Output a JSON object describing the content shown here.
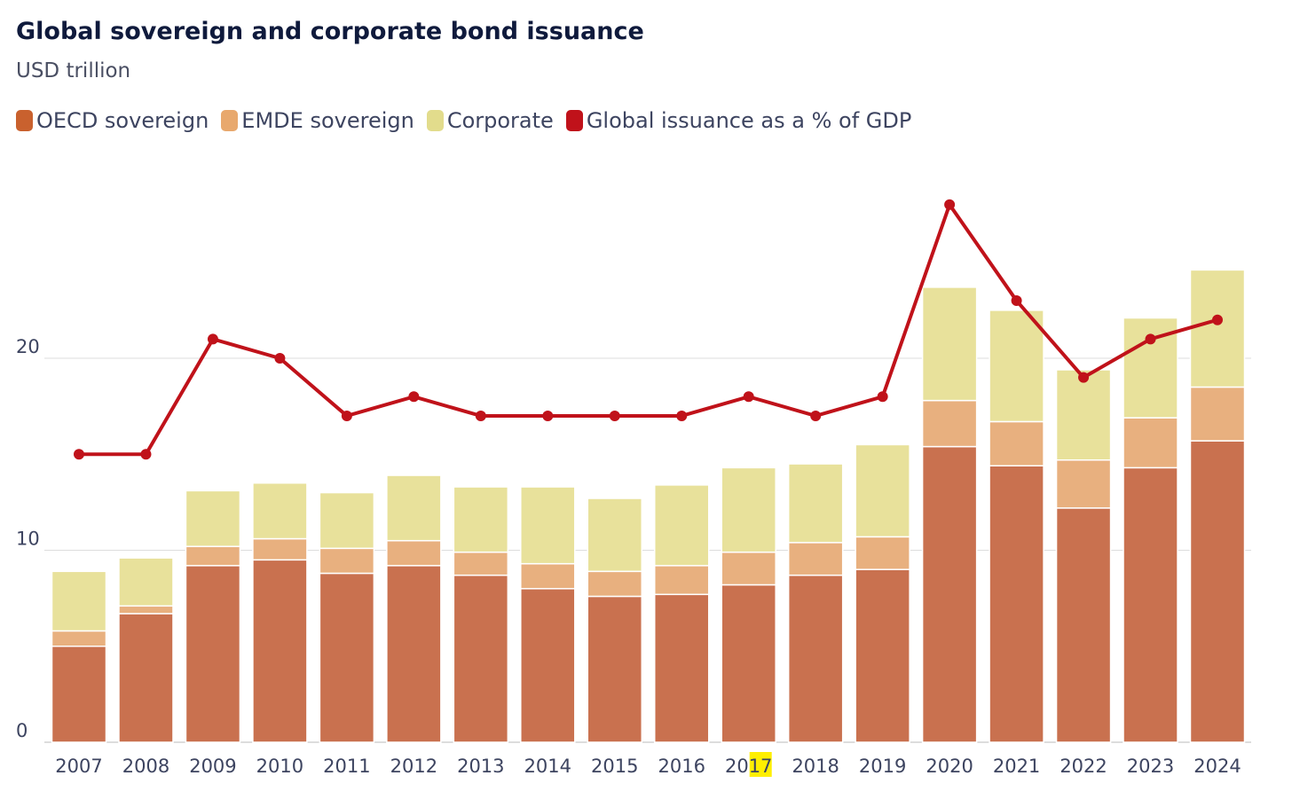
{
  "chart_data": {
    "type": "bar",
    "title": "Global sovereign and corporate bond issuance",
    "subtitle": "USD trillion",
    "xlabel": "",
    "ylabel": "USD trillion",
    "ylim": [
      0,
      30
    ],
    "yticks": [
      0,
      10,
      20
    ],
    "grid": true,
    "legend_placement": "top-left",
    "stacked": true,
    "categories": [
      "2007",
      "2008",
      "2009",
      "2010",
      "2011",
      "2012",
      "2013",
      "2014",
      "2015",
      "2016",
      "2017",
      "2018",
      "2019",
      "2020",
      "2021",
      "2022",
      "2023",
      "2024"
    ],
    "highlighted_label": {
      "category": "2017",
      "prefix": "20",
      "highlighted": "17"
    },
    "series": [
      {
        "name": "OECD sovereign",
        "type": "bar",
        "color": "#c9714f",
        "values": [
          5.0,
          6.7,
          9.2,
          9.5,
          8.8,
          9.2,
          8.7,
          8.0,
          7.6,
          7.7,
          8.2,
          8.7,
          9.0,
          15.4,
          14.4,
          12.2,
          14.3,
          15.7
        ]
      },
      {
        "name": "EMDE sovereign",
        "type": "bar",
        "color": "#e8b07f",
        "values": [
          0.8,
          0.4,
          1.0,
          1.1,
          1.3,
          1.3,
          1.2,
          1.3,
          1.3,
          1.5,
          1.7,
          1.7,
          1.7,
          2.4,
          2.3,
          2.5,
          2.6,
          2.8
        ]
      },
      {
        "name": "Corporate",
        "type": "bar",
        "color": "#e8e19b",
        "values": [
          3.1,
          2.5,
          2.9,
          2.9,
          2.9,
          3.4,
          3.4,
          4.0,
          3.8,
          4.2,
          4.4,
          4.1,
          4.8,
          5.9,
          5.8,
          4.7,
          5.2,
          6.1
        ]
      },
      {
        "name": "Global issuance as a % of GDP",
        "type": "line",
        "color": "#c0121a",
        "values": [
          15,
          15,
          21,
          20,
          17,
          18,
          17,
          17,
          17,
          17,
          18,
          17,
          18,
          28,
          23,
          19,
          21,
          22
        ]
      }
    ]
  }
}
